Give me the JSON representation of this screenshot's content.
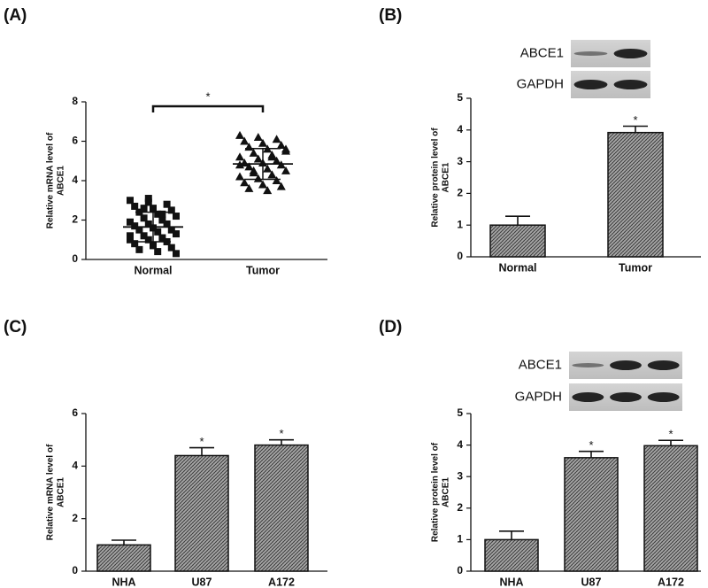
{
  "chart_data": [
    {
      "type": "strip",
      "panel": "(A)",
      "ylabel": [
        "Relative mRNA level of",
        "ABCE1"
      ],
      "categories": [
        "Normal",
        "Tumor"
      ],
      "points": [
        [
          3.0,
          2.9,
          2.8,
          2.7,
          2.6,
          2.5,
          2.4,
          2.3,
          2.2,
          2.1,
          2.0,
          1.9,
          1.8,
          1.8,
          1.7,
          1.6,
          1.5,
          1.5,
          1.4,
          1.3,
          1.2,
          1.1,
          1.0,
          1.0,
          0.9,
          0.8,
          0.7,
          0.6,
          0.5,
          0.4,
          0.3,
          2.6,
          2.3,
          1.2,
          3.1
        ],
        [
          6.3,
          6.2,
          6.1,
          6.0,
          5.9,
          5.8,
          5.7,
          5.6,
          5.5,
          5.4,
          5.3,
          5.2,
          5.1,
          5.0,
          4.9,
          4.9,
          4.8,
          4.7,
          4.6,
          4.5,
          4.4,
          4.3,
          4.2,
          4.1,
          4.0,
          3.9,
          3.8,
          3.7,
          3.6,
          3.5,
          5.6,
          4.5,
          5.2,
          4.8
        ]
      ],
      "markers": [
        "square",
        "triangle"
      ],
      "color": "#111111",
      "means": [
        1.65,
        4.85
      ],
      "errors": [
        0.75,
        0.78
      ],
      "bracket_label": "*",
      "ylim": [
        0,
        8
      ],
      "yticks": [
        0,
        2,
        4,
        6,
        8
      ]
    },
    {
      "type": "bar",
      "panel": "(B)",
      "ylabel": [
        "Relative protein level of",
        "ABCE1"
      ],
      "blot_labels": [
        "ABCE1",
        "GAPDH"
      ],
      "categories": [
        "Normal",
        "Tumor"
      ],
      "values": [
        1.0,
        3.92
      ],
      "errors": [
        0.28,
        0.2
      ],
      "sig": [
        null,
        "*"
      ],
      "ylim": [
        0,
        5
      ],
      "yticks": [
        0,
        1,
        2,
        3,
        4,
        5
      ]
    },
    {
      "type": "bar",
      "panel": "(C)",
      "ylabel": [
        "Relative mRNA level of",
        "ABCE1"
      ],
      "categories": [
        "NHA",
        "U87",
        "A172"
      ],
      "values": [
        1.0,
        4.4,
        4.8
      ],
      "errors": [
        0.18,
        0.3,
        0.2
      ],
      "sig": [
        null,
        "*",
        "*"
      ],
      "ylim": [
        0,
        6
      ],
      "yticks": [
        0,
        2,
        4,
        6
      ]
    },
    {
      "type": "bar",
      "panel": "(D)",
      "ylabel": [
        "Relative protein level of",
        "ABCE1"
      ],
      "blot_labels": [
        "ABCE1",
        "GAPDH"
      ],
      "categories": [
        "NHA",
        "U87",
        "A172"
      ],
      "values": [
        1.0,
        3.6,
        3.98
      ],
      "errors": [
        0.27,
        0.2,
        0.17
      ],
      "sig": [
        null,
        "*",
        "*"
      ],
      "ylim": [
        0,
        5
      ],
      "yticks": [
        0,
        1,
        2,
        3,
        4,
        5
      ]
    }
  ]
}
